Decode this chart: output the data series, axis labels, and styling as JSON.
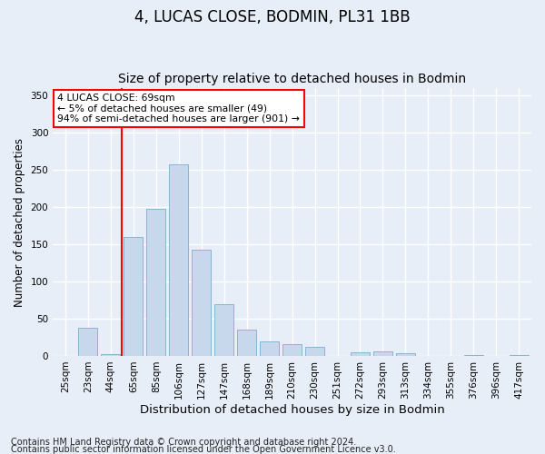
{
  "title": "4, LUCAS CLOSE, BODMIN, PL31 1BB",
  "subtitle": "Size of property relative to detached houses in Bodmin",
  "xlabel": "Distribution of detached houses by size in Bodmin",
  "ylabel": "Number of detached properties",
  "footnote1": "Contains HM Land Registry data © Crown copyright and database right 2024.",
  "footnote2": "Contains public sector information licensed under the Open Government Licence v3.0.",
  "bar_labels": [
    "25sqm",
    "23sqm",
    "44sqm",
    "65sqm",
    "85sqm",
    "106sqm",
    "127sqm",
    "147sqm",
    "168sqm",
    "189sqm",
    "210sqm",
    "230sqm",
    "251sqm",
    "272sqm",
    "293sqm",
    "313sqm",
    "334sqm",
    "355sqm",
    "376sqm",
    "396sqm",
    "417sqm"
  ],
  "bar_values": [
    0,
    38,
    2,
    160,
    198,
    257,
    143,
    70,
    35,
    20,
    16,
    12,
    0,
    5,
    6,
    4,
    0,
    0,
    1,
    0,
    1
  ],
  "bar_color": "#c8d8ec",
  "bar_edge_color": "#7aaecd",
  "vline_x_index": 3,
  "vline_color": "red",
  "annotation_text": "4 LUCAS CLOSE: 69sqm\n← 5% of detached houses are smaller (49)\n94% of semi-detached houses are larger (901) →",
  "annotation_box_color": "white",
  "annotation_box_edge_color": "red",
  "ylim": [
    0,
    360
  ],
  "yticks": [
    0,
    50,
    100,
    150,
    200,
    250,
    300,
    350
  ],
  "background_color": "#e8eef8",
  "plot_background_color": "#e8eef8",
  "grid_color": "white",
  "title_fontsize": 12,
  "subtitle_fontsize": 10,
  "xlabel_fontsize": 9.5,
  "ylabel_fontsize": 8.5,
  "tick_fontsize": 7.5,
  "footnote_fontsize": 7
}
